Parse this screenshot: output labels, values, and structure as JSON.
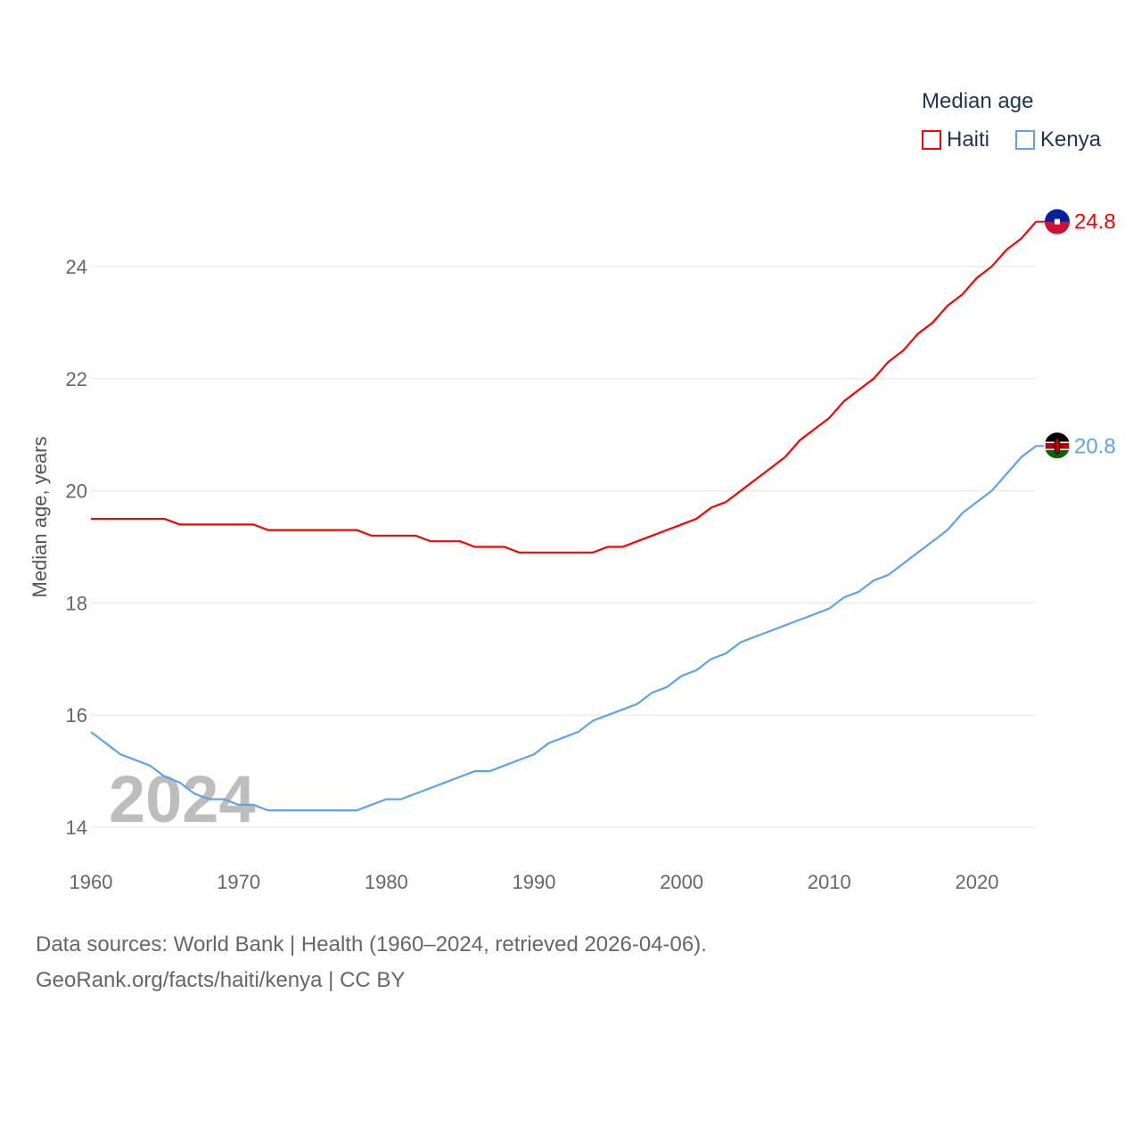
{
  "chart_data": {
    "type": "line",
    "watermark_year": "2024",
    "ylabel": "Median age, years",
    "xlabel": "",
    "ylim": [
      14,
      24.8
    ],
    "xlim": [
      1960,
      2024
    ],
    "yticks": [
      14,
      16,
      18,
      20,
      22,
      24
    ],
    "xticks": [
      1960,
      1970,
      1980,
      1990,
      2000,
      2010,
      2020
    ],
    "legend": {
      "title": "Median age",
      "placement": "top-right"
    },
    "x": [
      1960,
      1961,
      1962,
      1963,
      1964,
      1965,
      1966,
      1967,
      1968,
      1969,
      1970,
      1971,
      1972,
      1973,
      1974,
      1975,
      1976,
      1977,
      1978,
      1979,
      1980,
      1981,
      1982,
      1983,
      1984,
      1985,
      1986,
      1987,
      1988,
      1989,
      1990,
      1991,
      1992,
      1993,
      1994,
      1995,
      1996,
      1997,
      1998,
      1999,
      2000,
      2001,
      2002,
      2003,
      2004,
      2005,
      2006,
      2007,
      2008,
      2009,
      2010,
      2011,
      2012,
      2013,
      2014,
      2015,
      2016,
      2017,
      2018,
      2019,
      2020,
      2021,
      2022,
      2023,
      2024
    ],
    "series": [
      {
        "name": "Haiti",
        "color": "#ff0000",
        "end_label": "24.8",
        "values": [
          19.5,
          19.5,
          19.5,
          19.5,
          19.5,
          19.5,
          19.4,
          19.4,
          19.4,
          19.4,
          19.4,
          19.4,
          19.3,
          19.3,
          19.3,
          19.3,
          19.3,
          19.3,
          19.3,
          19.2,
          19.2,
          19.2,
          19.2,
          19.1,
          19.1,
          19.1,
          19.0,
          19.0,
          19.0,
          18.9,
          18.9,
          18.9,
          18.9,
          18.9,
          18.9,
          19.0,
          19.0,
          19.1,
          19.2,
          19.3,
          19.4,
          19.5,
          19.7,
          19.8,
          20.0,
          20.2,
          20.4,
          20.6,
          20.9,
          21.1,
          21.3,
          21.6,
          21.8,
          22.0,
          22.3,
          22.5,
          22.8,
          23.0,
          23.3,
          23.5,
          23.8,
          24.0,
          24.3,
          24.5,
          24.8
        ]
      },
      {
        "name": "Kenya",
        "color": "#5ba4ec",
        "end_label": "20.8",
        "values": [
          15.7,
          15.5,
          15.3,
          15.2,
          15.1,
          14.9,
          14.8,
          14.6,
          14.5,
          14.5,
          14.4,
          14.4,
          14.3,
          14.3,
          14.3,
          14.3,
          14.3,
          14.3,
          14.3,
          14.4,
          14.5,
          14.5,
          14.6,
          14.7,
          14.8,
          14.9,
          15.0,
          15.0,
          15.1,
          15.2,
          15.3,
          15.5,
          15.6,
          15.7,
          15.9,
          16.0,
          16.1,
          16.2,
          16.4,
          16.5,
          16.7,
          16.8,
          17.0,
          17.1,
          17.3,
          17.4,
          17.5,
          17.6,
          17.7,
          17.8,
          17.9,
          18.1,
          18.2,
          18.4,
          18.5,
          18.7,
          18.9,
          19.1,
          19.3,
          19.6,
          19.8,
          20.0,
          20.3,
          20.6,
          20.8
        ]
      }
    ]
  },
  "footer": {
    "line1": "Data sources: World Bank | Health (1960–2024, retrieved 2026-04-06).",
    "line2": "GeoRank.org/facts/haiti/kenya | CC BY"
  }
}
